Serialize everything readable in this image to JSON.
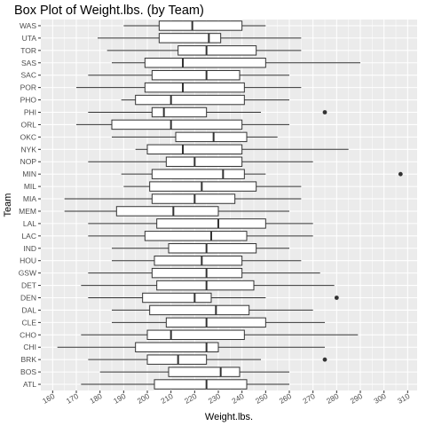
{
  "chart_data": {
    "type": "boxplot",
    "title": "Box Plot of Weight.lbs. (by Team)",
    "xlabel": "Weight.lbs.",
    "ylabel": "Team",
    "xlim": [
      155,
      314
    ],
    "x_ticks": [
      160,
      170,
      180,
      190,
      200,
      210,
      220,
      230,
      240,
      250,
      260,
      270,
      280,
      290,
      300,
      310
    ],
    "grid": true,
    "colors": {
      "panel": "#ebebeb",
      "grid_major": "#ffffff",
      "box_fill": "#ffffff",
      "line": "#333333",
      "outlier": "#333333"
    },
    "boxes": [
      {
        "team": "WAS",
        "min": 190,
        "q1": 205,
        "median": 219,
        "q3": 240,
        "max": 250,
        "outliers": []
      },
      {
        "team": "UTA",
        "min": 179,
        "q1": 205,
        "median": 226,
        "q3": 231,
        "max": 265,
        "outliers": []
      },
      {
        "team": "TOR",
        "min": 183,
        "q1": 213,
        "median": 225,
        "q3": 246,
        "max": 265,
        "outliers": []
      },
      {
        "team": "SAS",
        "min": 185,
        "q1": 199,
        "median": 215,
        "q3": 250,
        "max": 290,
        "outliers": []
      },
      {
        "team": "SAC",
        "min": 175,
        "q1": 202,
        "median": 225,
        "q3": 239,
        "max": 260,
        "outliers": []
      },
      {
        "team": "POR",
        "min": 170,
        "q1": 199,
        "median": 215,
        "q3": 241,
        "max": 265,
        "outliers": []
      },
      {
        "team": "PHO",
        "min": 189,
        "q1": 195,
        "median": 210,
        "q3": 241,
        "max": 260,
        "outliers": []
      },
      {
        "team": "PHI",
        "min": 175,
        "q1": 202,
        "median": 207,
        "q3": 225,
        "max": 248,
        "outliers": [
          275
        ]
      },
      {
        "team": "ORL",
        "min": 170,
        "q1": 185,
        "median": 210,
        "q3": 240,
        "max": 260,
        "outliers": []
      },
      {
        "team": "OKC",
        "min": 185,
        "q1": 212,
        "median": 228,
        "q3": 242,
        "max": 255,
        "outliers": []
      },
      {
        "team": "NYK",
        "min": 195,
        "q1": 200,
        "median": 215,
        "q3": 240,
        "max": 285,
        "outliers": []
      },
      {
        "team": "NOP",
        "min": 175,
        "q1": 208,
        "median": 220,
        "q3": 240,
        "max": 270,
        "outliers": []
      },
      {
        "team": "MIN",
        "min": 189,
        "q1": 202,
        "median": 232,
        "q3": 241,
        "max": 250,
        "outliers": [
          307
        ]
      },
      {
        "team": "MIL",
        "min": 190,
        "q1": 201,
        "median": 223,
        "q3": 246,
        "max": 265,
        "outliers": []
      },
      {
        "team": "MIA",
        "min": 165,
        "q1": 202,
        "median": 220,
        "q3": 237,
        "max": 265,
        "outliers": []
      },
      {
        "team": "MEM",
        "min": 165,
        "q1": 187,
        "median": 211,
        "q3": 230,
        "max": 260,
        "outliers": []
      },
      {
        "team": "LAL",
        "min": 175,
        "q1": 204,
        "median": 230,
        "q3": 250,
        "max": 270,
        "outliers": []
      },
      {
        "team": "LAC",
        "min": 175,
        "q1": 199,
        "median": 227,
        "q3": 242,
        "max": 270,
        "outliers": []
      },
      {
        "team": "IND",
        "min": 185,
        "q1": 209,
        "median": 225,
        "q3": 246,
        "max": 260,
        "outliers": []
      },
      {
        "team": "HOU",
        "min": 185,
        "q1": 203,
        "median": 223,
        "q3": 240,
        "max": 265,
        "outliers": []
      },
      {
        "team": "GSW",
        "min": 175,
        "q1": 202,
        "median": 225,
        "q3": 240,
        "max": 273,
        "outliers": []
      },
      {
        "team": "DET",
        "min": 172,
        "q1": 204,
        "median": 225,
        "q3": 245,
        "max": 279,
        "outliers": []
      },
      {
        "team": "DEN",
        "min": 175,
        "q1": 198,
        "median": 220,
        "q3": 227,
        "max": 250,
        "outliers": [
          280
        ]
      },
      {
        "team": "DAL",
        "min": 185,
        "q1": 201,
        "median": 229,
        "q3": 243,
        "max": 270,
        "outliers": []
      },
      {
        "team": "CLE",
        "min": 185,
        "q1": 208,
        "median": 225,
        "q3": 250,
        "max": 275,
        "outliers": []
      },
      {
        "team": "CHO",
        "min": 172,
        "q1": 200,
        "median": 210,
        "q3": 241,
        "max": 289,
        "outliers": []
      },
      {
        "team": "CHI",
        "min": 162,
        "q1": 195,
        "median": 225,
        "q3": 230,
        "max": 275,
        "outliers": []
      },
      {
        "team": "BRK",
        "min": 175,
        "q1": 200,
        "median": 213,
        "q3": 225,
        "max": 248,
        "outliers": [
          275
        ]
      },
      {
        "team": "BOS",
        "min": 180,
        "q1": 209,
        "median": 231,
        "q3": 239,
        "max": 260,
        "outliers": []
      },
      {
        "team": "ATL",
        "min": 172,
        "q1": 203,
        "median": 225,
        "q3": 242,
        "max": 260,
        "outliers": []
      }
    ]
  }
}
